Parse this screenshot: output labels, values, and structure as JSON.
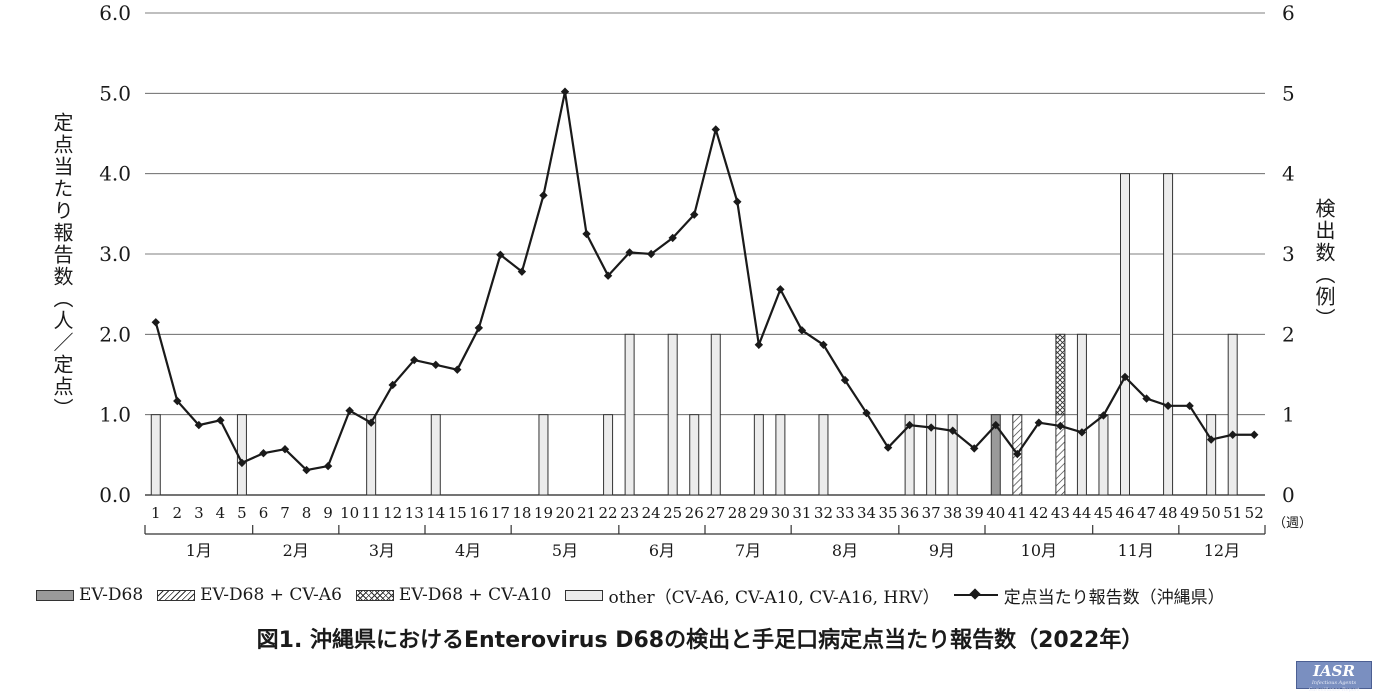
{
  "chart_data": {
    "type": "bar+line",
    "y_left_label": "定点当たり報告数（人／定点）",
    "y_right_label": "検出数（例）",
    "y_left_ticks": [
      "0.0",
      "1.0",
      "2.0",
      "3.0",
      "4.0",
      "5.0",
      "6.0"
    ],
    "y_right_ticks": [
      "0",
      "1",
      "2",
      "3",
      "4",
      "5",
      "6"
    ],
    "ylim_left": [
      0,
      6
    ],
    "ylim_right": [
      0,
      6
    ],
    "grid": true,
    "week_unit": "（週）",
    "weeks": [
      "1",
      "2",
      "3",
      "4",
      "5",
      "6",
      "7",
      "8",
      "9",
      "10",
      "11",
      "12",
      "13",
      "14",
      "15",
      "16",
      "17",
      "18",
      "19",
      "20",
      "21",
      "22",
      "23",
      "24",
      "25",
      "26",
      "27",
      "28",
      "29",
      "30",
      "31",
      "32",
      "33",
      "34",
      "35",
      "36",
      "37",
      "38",
      "39",
      "40",
      "41",
      "42",
      "43",
      "44",
      "45",
      "46",
      "47",
      "48",
      "49",
      "50",
      "51",
      "52"
    ],
    "months": [
      {
        "label": "1月",
        "start": 1,
        "end": 5
      },
      {
        "label": "2月",
        "start": 6,
        "end": 9
      },
      {
        "label": "3月",
        "start": 10,
        "end": 13
      },
      {
        "label": "4月",
        "start": 14,
        "end": 17
      },
      {
        "label": "5月",
        "start": 18,
        "end": 22
      },
      {
        "label": "6月",
        "start": 23,
        "end": 26
      },
      {
        "label": "7月",
        "start": 27,
        "end": 30
      },
      {
        "label": "8月",
        "start": 31,
        "end": 35
      },
      {
        "label": "9月",
        "start": 36,
        "end": 39
      },
      {
        "label": "10月",
        "start": 40,
        "end": 44
      },
      {
        "label": "11月",
        "start": 45,
        "end": 48
      },
      {
        "label": "12月",
        "start": 49,
        "end": 52
      }
    ],
    "bar_series": [
      {
        "name": "EV-D68",
        "color": "#9a9a9a",
        "points": [
          {
            "week": 40,
            "value": 1
          }
        ]
      },
      {
        "name": "EV-D68 + CV-A6",
        "color": "#ffffff",
        "pattern": "hatch",
        "points": [
          {
            "week": 41,
            "value": 1
          },
          {
            "week": 43,
            "value": 1
          }
        ]
      },
      {
        "name": "EV-D68 + CV-A10",
        "color": "#ffffff",
        "pattern": "crosshatch",
        "points": [
          {
            "week": 43,
            "value": 1
          }
        ]
      },
      {
        "name": "other（CV-A6, CV-A10, CV-A16, HRV）",
        "color": "#ececec",
        "points": [
          {
            "week": 1,
            "value": 1
          },
          {
            "week": 5,
            "value": 1
          },
          {
            "week": 11,
            "value": 1
          },
          {
            "week": 14,
            "value": 1
          },
          {
            "week": 19,
            "value": 1
          },
          {
            "week": 22,
            "value": 1
          },
          {
            "week": 23,
            "value": 2
          },
          {
            "week": 25,
            "value": 2
          },
          {
            "week": 26,
            "value": 1
          },
          {
            "week": 27,
            "value": 2
          },
          {
            "week": 29,
            "value": 1
          },
          {
            "week": 30,
            "value": 1
          },
          {
            "week": 32,
            "value": 1
          },
          {
            "week": 36,
            "value": 1
          },
          {
            "week": 37,
            "value": 1
          },
          {
            "week": 38,
            "value": 1
          },
          {
            "week": 44,
            "value": 2
          },
          {
            "week": 45,
            "value": 1
          },
          {
            "week": 46,
            "value": 4
          },
          {
            "week": 48,
            "value": 4
          },
          {
            "week": 50,
            "value": 1
          },
          {
            "week": 51,
            "value": 2
          }
        ]
      }
    ],
    "line_series": {
      "name": "定点当たり報告数（沖縄県）",
      "color": "#1a1a1a",
      "values": [
        2.15,
        1.17,
        0.87,
        0.93,
        0.4,
        0.52,
        0.57,
        0.31,
        0.36,
        1.05,
        0.9,
        1.37,
        1.68,
        1.62,
        1.56,
        2.08,
        2.99,
        2.78,
        3.73,
        5.02,
        3.25,
        2.73,
        3.02,
        3.0,
        3.2,
        3.49,
        4.55,
        3.65,
        1.87,
        2.56,
        2.05,
        1.87,
        1.43,
        1.02,
        0.59,
        0.87,
        0.84,
        0.8,
        0.58,
        0.87,
        0.51,
        0.9,
        0.86,
        0.78,
        0.99,
        1.47,
        1.2,
        1.11,
        1.11,
        0.69,
        0.75,
        0.75
      ]
    }
  },
  "legend": {
    "ev_d68": "EV-D68",
    "ev_d68_cva6": "EV-D68 + CV-A6",
    "ev_d68_cva10": "EV-D68 + CV-A10",
    "other": "other（CV-A6, CV-A10, CV-A16, HRV）",
    "line": "定点当たり報告数（沖縄県）"
  },
  "figure_title": "図1. 沖縄県におけるEnterovirus D68の検出と手足口病定点当たり報告数（2022年）",
  "logo_text": "IASR",
  "logo_subtext": "Infectious Agents Surveillance Report"
}
